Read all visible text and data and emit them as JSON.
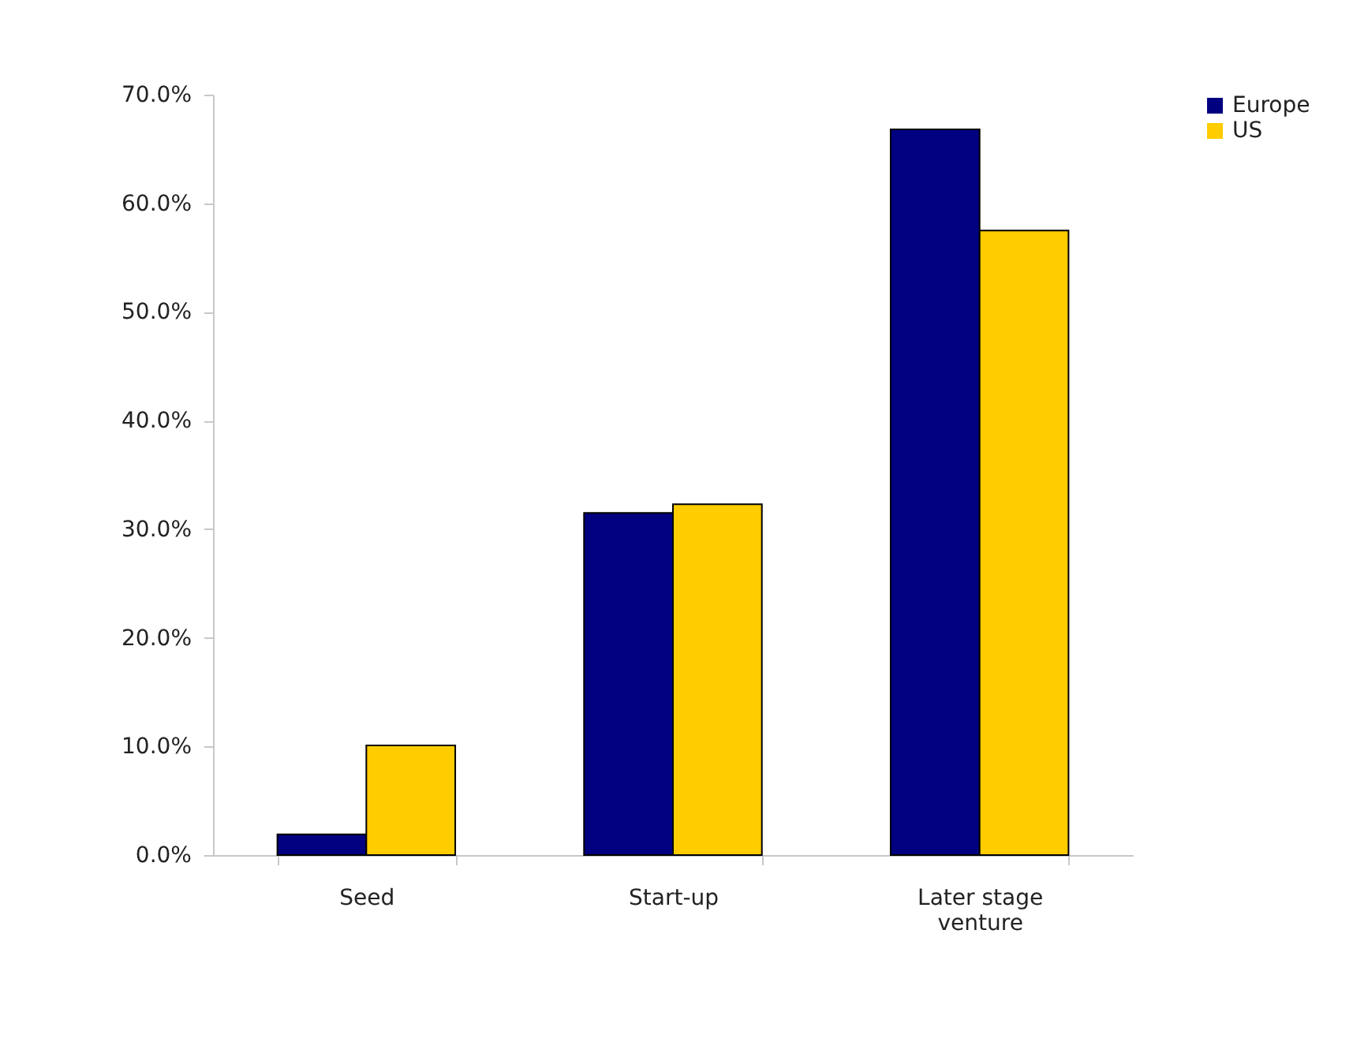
{
  "chart_data": {
    "type": "bar",
    "categories": [
      "Seed",
      "Start-up",
      "Later stage venture"
    ],
    "series": [
      {
        "name": "Europe",
        "color": "#000080",
        "values": [
          1.9,
          31.5,
          66.8
        ]
      },
      {
        "name": "US",
        "color": "#ffcc00",
        "values": [
          10.1,
          32.3,
          57.5
        ]
      }
    ],
    "ylim": [
      0,
      70
    ],
    "yticks": [
      {
        "value": 0,
        "label": "0.0%"
      },
      {
        "value": 10,
        "label": "10.0%"
      },
      {
        "value": 20,
        "label": "20.0%"
      },
      {
        "value": 30,
        "label": "30.0%"
      },
      {
        "value": 40,
        "label": "40.0%"
      },
      {
        "value": 50,
        "label": "50.0%"
      },
      {
        "value": 60,
        "label": "60.0%"
      },
      {
        "value": 70,
        "label": "70.0%"
      }
    ],
    "grid": false,
    "legend": "right"
  }
}
